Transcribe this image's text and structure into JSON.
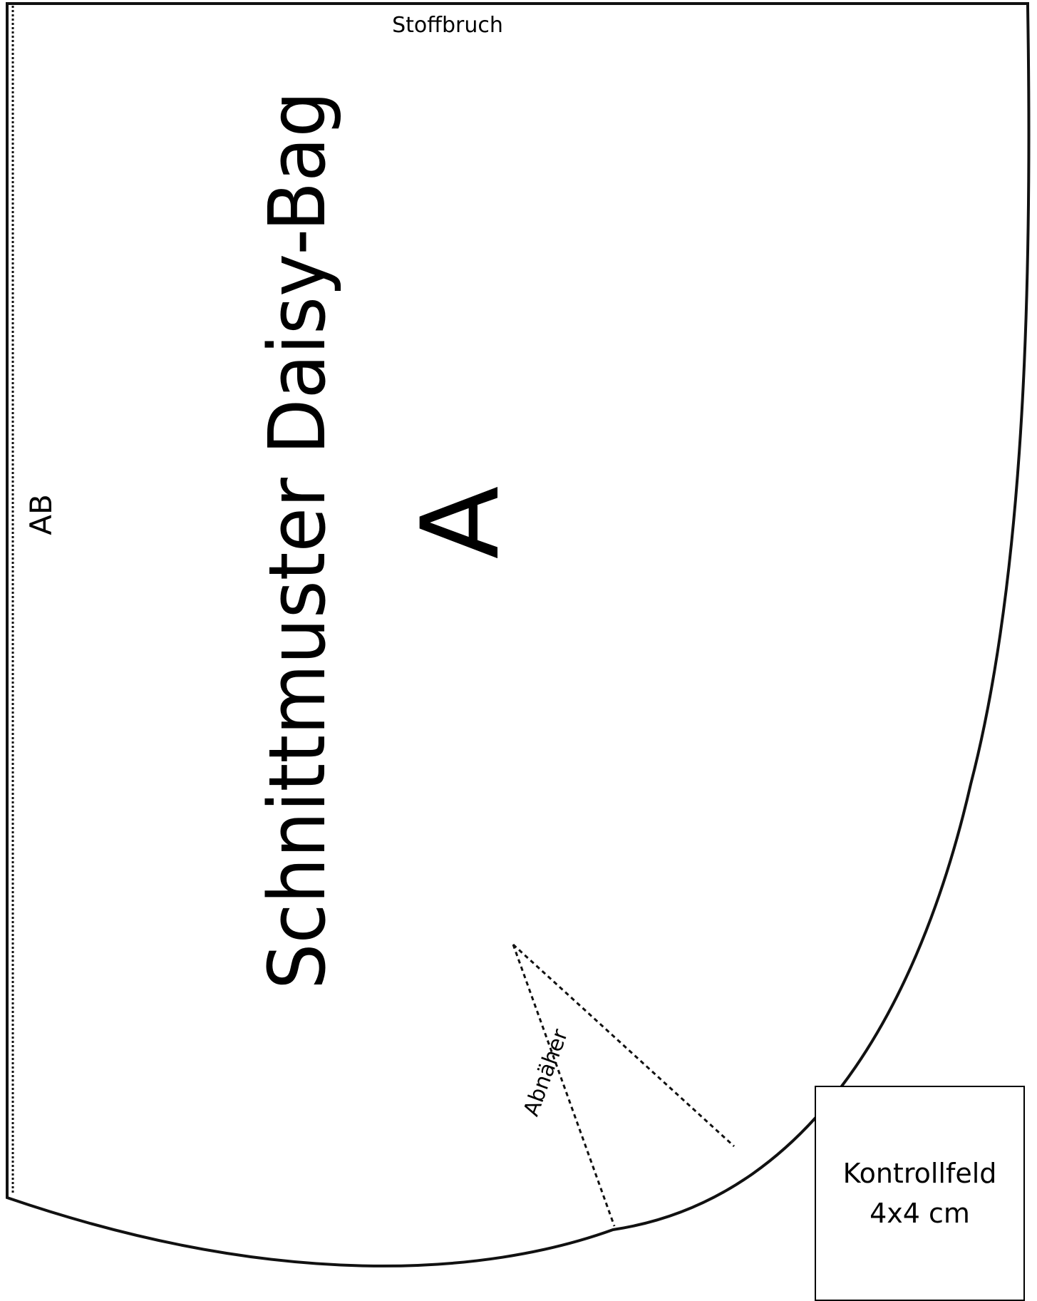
{
  "pattern": {
    "fold_label": "Stoffbruch",
    "title": "Schnittmuster Daisy-Bag",
    "piece_letter": "A",
    "grain_label": "AB",
    "dart_label": "Abnäher"
  },
  "control_square": {
    "line1": "Kontrollfeld",
    "line2": "4x4 cm"
  }
}
